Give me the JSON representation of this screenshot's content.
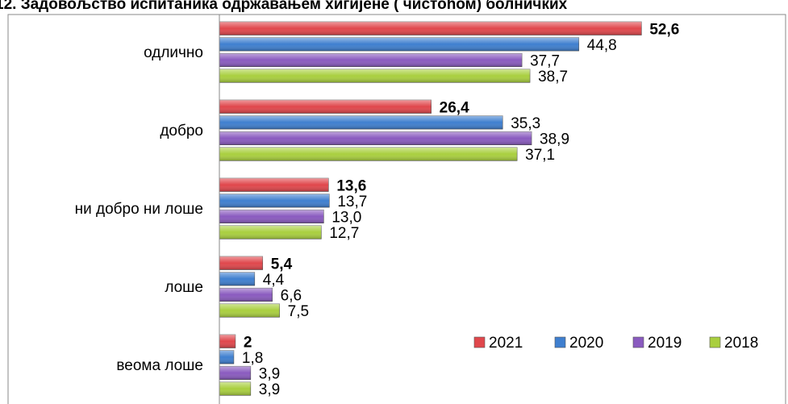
{
  "chart_data": {
    "type": "barh",
    "title": "12. Задовољство испитаника одржавањем хигијене ( чистоћом) болничких",
    "categories": [
      "одлично",
      "добро",
      "ни добро ни лоше",
      "лоше",
      "веома лоше"
    ],
    "xlim": [
      0,
      60
    ],
    "legend": "lower right",
    "series": [
      {
        "name": "2021",
        "color": "#e0474c",
        "values": [
          52.6,
          26.4,
          13.6,
          5.4,
          2
        ],
        "value_labels": [
          "52,6",
          "26,4",
          "13,6",
          "5,4",
          "2"
        ]
      },
      {
        "name": "2020",
        "color": "#3f7fcf",
        "values": [
          44.8,
          35.3,
          13.7,
          4.4,
          1.8
        ],
        "value_labels": [
          "44,8",
          "35,3",
          "13,7",
          "4,4",
          "1,8"
        ]
      },
      {
        "name": "2019",
        "color": "#8a5bbf",
        "values": [
          37.7,
          38.9,
          13.0,
          6.6,
          3.9
        ],
        "value_labels": [
          "37,7",
          "38,9",
          "13,0",
          "6,6",
          "3,9"
        ]
      },
      {
        "name": "2018",
        "color": "#a9cf3f",
        "values": [
          38.7,
          37.1,
          12.7,
          7.5,
          3.9
        ],
        "value_labels": [
          "38,7",
          "37,1",
          "12,7",
          "7,5",
          "3,9"
        ]
      }
    ]
  }
}
